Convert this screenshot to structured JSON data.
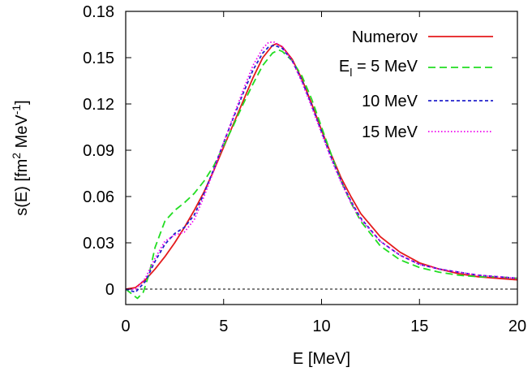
{
  "chart_data": {
    "type": "line",
    "title": "",
    "xlabel": "E [MeV]",
    "ylabel": {
      "base": "s(E) [fm",
      "sup1": "2",
      "mid": " MeV",
      "sup2": "-1",
      "end": "]"
    },
    "xlim": [
      0,
      20
    ],
    "ylim": [
      -0.01,
      0.18
    ],
    "xticks": [
      0,
      5,
      10,
      15,
      20
    ],
    "xtick_labels": [
      "0",
      "5",
      "10",
      "15",
      "20"
    ],
    "yticks": [
      0,
      0.03,
      0.06,
      0.09,
      0.12,
      0.15,
      0.18
    ],
    "ytick_labels": [
      "0",
      "0.03",
      "0.06",
      "0.09",
      "0.12",
      "0.15",
      "0.18"
    ],
    "grid": false,
    "legend_position": "top-right",
    "zero_line": true,
    "series": [
      {
        "name": "Numerov",
        "color": "#e41a1c",
        "dash": "solid",
        "x": [
          0,
          0.5,
          1,
          1.5,
          2,
          2.5,
          3,
          3.5,
          4,
          4.5,
          5,
          5.5,
          6,
          6.5,
          7,
          7.5,
          7.7,
          8,
          8.5,
          9,
          9.5,
          10,
          10.5,
          11,
          11.5,
          12,
          13,
          14,
          15,
          16,
          17,
          18,
          19,
          20
        ],
        "y": [
          0,
          0.001,
          0.006,
          0.013,
          0.021,
          0.03,
          0.04,
          0.051,
          0.063,
          0.077,
          0.092,
          0.107,
          0.122,
          0.137,
          0.15,
          0.158,
          0.159,
          0.157,
          0.149,
          0.136,
          0.12,
          0.103,
          0.087,
          0.072,
          0.06,
          0.049,
          0.034,
          0.024,
          0.017,
          0.013,
          0.01,
          0.008,
          0.007,
          0.006
        ]
      },
      {
        "name": "E_l = 5 MeV",
        "label": {
          "pre": "E",
          "sub": "l",
          "post": " = 5 MeV"
        },
        "color": "#22dd22",
        "dash": "long",
        "x": [
          0,
          0.3,
          0.6,
          0.9,
          1.2,
          1.5,
          2,
          2.5,
          3,
          3.5,
          4,
          4.5,
          5,
          5.5,
          6,
          6.5,
          7,
          7.5,
          7.8,
          8,
          8.5,
          9,
          9.5,
          10,
          10.5,
          11,
          11.5,
          12,
          13,
          14,
          15,
          16,
          17,
          18,
          19,
          20
        ],
        "y": [
          0,
          -0.003,
          -0.006,
          -0.002,
          0.01,
          0.027,
          0.044,
          0.051,
          0.056,
          0.062,
          0.07,
          0.08,
          0.093,
          0.106,
          0.12,
          0.133,
          0.145,
          0.153,
          0.155,
          0.154,
          0.148,
          0.138,
          0.123,
          0.105,
          0.087,
          0.07,
          0.056,
          0.044,
          0.028,
          0.019,
          0.014,
          0.011,
          0.009,
          0.008,
          0.008,
          0.007
        ]
      },
      {
        "name": "10 MeV",
        "color": "#2222cc",
        "dash": "short",
        "x": [
          0,
          0.5,
          1,
          1.5,
          2,
          2.5,
          3,
          3.5,
          4,
          4.5,
          5,
          5.5,
          6,
          6.5,
          7,
          7.3,
          7.6,
          8,
          8.5,
          9,
          9.5,
          10,
          10.5,
          11,
          11.5,
          12,
          13,
          14,
          15,
          16,
          17,
          18,
          19,
          20
        ],
        "y": [
          0,
          -0.002,
          0.005,
          0.018,
          0.029,
          0.036,
          0.04,
          0.048,
          0.062,
          0.078,
          0.095,
          0.111,
          0.127,
          0.142,
          0.153,
          0.157,
          0.158,
          0.156,
          0.148,
          0.135,
          0.119,
          0.102,
          0.085,
          0.07,
          0.057,
          0.046,
          0.031,
          0.022,
          0.016,
          0.013,
          0.011,
          0.009,
          0.008,
          0.007
        ]
      },
      {
        "name": "15 MeV",
        "color": "#ee00ee",
        "dash": "dotted",
        "x": [
          0,
          0.5,
          1,
          1.5,
          2,
          2.5,
          3,
          3.5,
          4,
          4.5,
          5,
          5.5,
          6,
          6.5,
          7,
          7.3,
          7.6,
          8,
          8.5,
          9,
          9.5,
          10,
          10.5,
          11,
          11.5,
          12,
          13,
          14,
          15,
          16,
          17,
          18,
          19,
          20
        ],
        "y": [
          0,
          0.0,
          0.007,
          0.02,
          0.031,
          0.035,
          0.037,
          0.045,
          0.06,
          0.077,
          0.095,
          0.112,
          0.129,
          0.145,
          0.156,
          0.16,
          0.16,
          0.157,
          0.148,
          0.134,
          0.118,
          0.101,
          0.084,
          0.069,
          0.056,
          0.045,
          0.031,
          0.022,
          0.016,
          0.013,
          0.011,
          0.009,
          0.008,
          0.007
        ]
      }
    ]
  }
}
